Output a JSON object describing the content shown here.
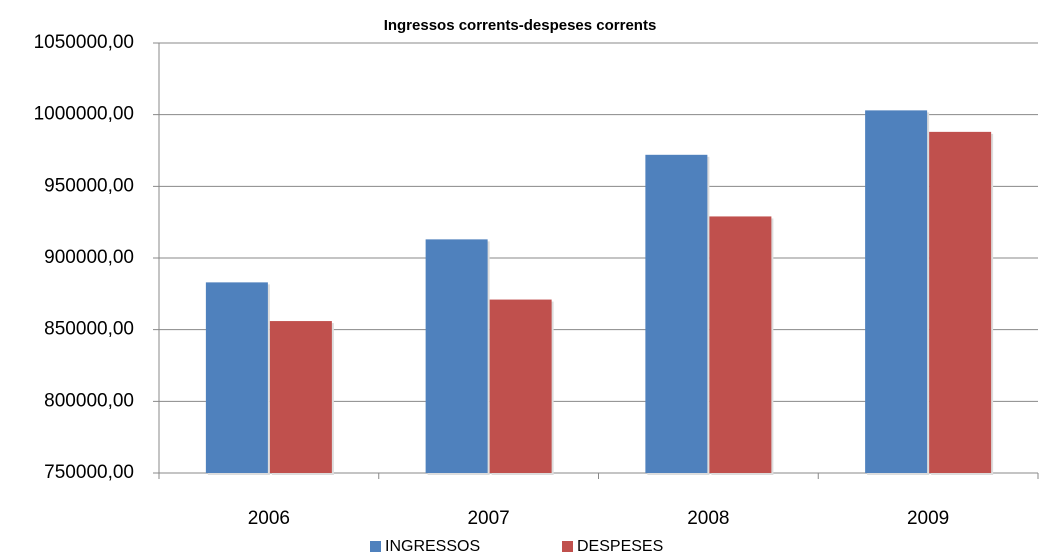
{
  "chart_data": {
    "type": "bar",
    "title": "Ingressos corrents-despeses corrents",
    "categories": [
      "2006",
      "2007",
      "2008",
      "2009"
    ],
    "series": [
      {
        "name": "INGRESSOS",
        "color": "#4f81bd",
        "values": [
          883000,
          913000,
          972000,
          1003000
        ]
      },
      {
        "name": "DESPESES",
        "color": "#c0504d",
        "values": [
          856000,
          871000,
          929000,
          988000
        ]
      }
    ],
    "ylim": [
      750000,
      1050000
    ],
    "yticks": [
      {
        "value": 750000,
        "label": "750000,00"
      },
      {
        "value": 800000,
        "label": "800000,00"
      },
      {
        "value": 850000,
        "label": "850000,00"
      },
      {
        "value": 900000,
        "label": "900000,00"
      },
      {
        "value": 950000,
        "label": "950000,00"
      },
      {
        "value": 1000000,
        "label": "1000000,00"
      },
      {
        "value": 1050000,
        "label": "1050000,00"
      }
    ],
    "grid": true,
    "legend": "bottom"
  }
}
